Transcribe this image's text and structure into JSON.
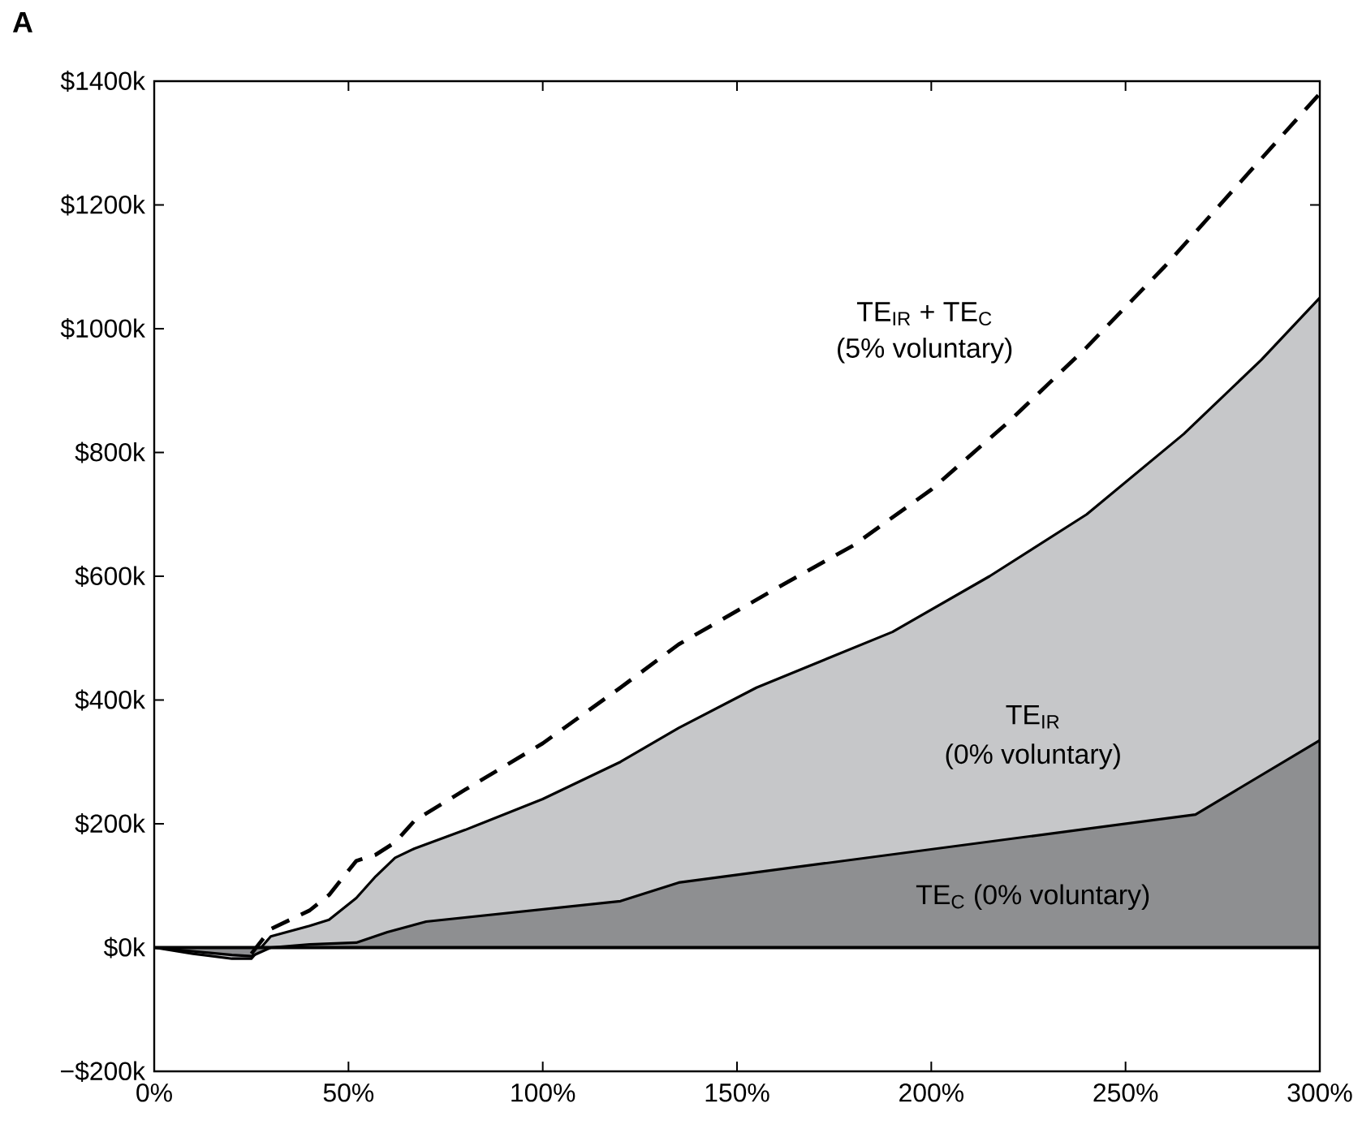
{
  "chart_data": {
    "type": "area",
    "title": "A",
    "xlim": [
      0,
      300
    ],
    "xticks": [
      {
        "value": 0,
        "label": "0%"
      },
      {
        "value": 50,
        "label": "50%"
      },
      {
        "value": 100,
        "label": "100%"
      },
      {
        "value": 150,
        "label": "150%"
      },
      {
        "value": 200,
        "label": "200%"
      },
      {
        "value": 250,
        "label": "250%"
      },
      {
        "value": 300,
        "label": "300%"
      }
    ],
    "ylim": [
      -200,
      1400
    ],
    "yticks": [
      {
        "value": -200,
        "label": "−$200k"
      },
      {
        "value": 0,
        "label": "$0k"
      },
      {
        "value": 200,
        "label": "$200k"
      },
      {
        "value": 400,
        "label": "$400k"
      },
      {
        "value": 600,
        "label": "$600k"
      },
      {
        "value": 800,
        "label": "$800k"
      },
      {
        "value": 1000,
        "label": "$1000k"
      },
      {
        "value": 1200,
        "label": "$1200k"
      },
      {
        "value": 1400,
        "label": "$1400k"
      }
    ],
    "series": [
      {
        "color": "#c6c7c9",
        "x": [
          0,
          10,
          20,
          25,
          30,
          40,
          45,
          52,
          57,
          62,
          67,
          80,
          100,
          120,
          135,
          155,
          190,
          215,
          240,
          265,
          285,
          300
        ],
        "values": [
          0,
          -10,
          -18,
          -18,
          18,
          35,
          45,
          80,
          115,
          145,
          160,
          190,
          240,
          300,
          355,
          420,
          510,
          600,
          700,
          830,
          950,
          1050
        ]
      },
      {
        "color": "#8e8f91",
        "x": [
          0,
          20,
          25,
          30,
          40,
          52,
          60,
          70,
          120,
          135,
          268,
          300
        ],
        "values": [
          0,
          -12,
          -14,
          0,
          5,
          8,
          25,
          42,
          75,
          105,
          215,
          335
        ]
      },
      {
        "type": "line",
        "color": "#000000",
        "line_style": "dashed",
        "x": [
          25,
          30,
          40,
          45,
          52,
          57,
          62,
          67,
          80,
          100,
          120,
          135,
          160,
          180,
          200,
          220,
          240,
          260,
          280,
          300
        ],
        "values": [
          -10,
          30,
          60,
          85,
          140,
          150,
          170,
          205,
          255,
          330,
          420,
          490,
          580,
          650,
          740,
          850,
          970,
          1100,
          1240,
          1380
        ]
      }
    ],
    "ref_lines": [
      {
        "axis": "y",
        "value": 0,
        "color": "#000000"
      }
    ],
    "annotations": [
      "TE$_{IR}$ + TE$_{C}$",
      "(5% voluntary)",
      "TE$_{IR}$",
      "(0% voluntary)",
      "TE$_{C}$ (0% voluntary)"
    ],
    "grid": false
  }
}
